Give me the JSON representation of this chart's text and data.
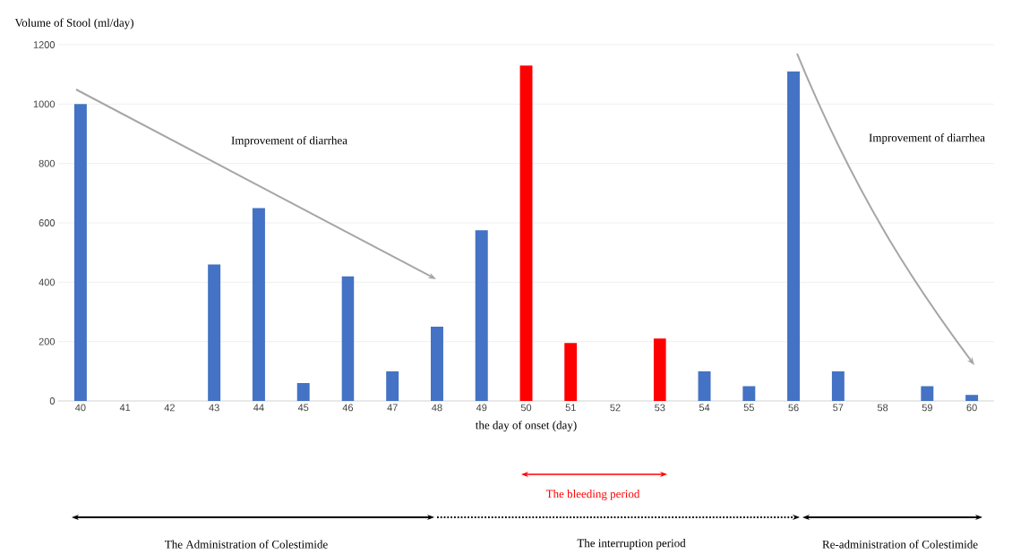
{
  "chart_data": {
    "type": "bar",
    "xlabel": "the day of onset (day)",
    "ylabel": "Volume of Stool (ml/day)",
    "categories": [
      "40",
      "41",
      "42",
      "43",
      "44",
      "45",
      "46",
      "47",
      "48",
      "49",
      "50",
      "51",
      "52",
      "53",
      "54",
      "55",
      "56",
      "57",
      "58",
      "59",
      "60"
    ],
    "values": [
      1000,
      0,
      0,
      460,
      650,
      60,
      420,
      100,
      250,
      575,
      1130,
      195,
      0,
      210,
      100,
      50,
      1110,
      100,
      0,
      50,
      20
    ],
    "colors": [
      "#4472c4",
      "#4472c4",
      "#4472c4",
      "#4472c4",
      "#4472c4",
      "#4472c4",
      "#4472c4",
      "#4472c4",
      "#4472c4",
      "#4472c4",
      "#ff0000",
      "#ff0000",
      "#ff0000",
      "#ff0000",
      "#4472c4",
      "#4472c4",
      "#4472c4",
      "#4472c4",
      "#4472c4",
      "#4472c4",
      "#4472c4"
    ],
    "ylim": [
      0,
      1200
    ],
    "yticks": [
      0,
      200,
      400,
      600,
      800,
      1000,
      1200
    ],
    "grid": "y",
    "annotations": [
      "Improvement of diarrhea",
      "Improvement of diarrhea",
      "The bleeding period",
      "The Administration of Colestimide",
      "The interruption period",
      "Re-administration of Colestimide"
    ]
  }
}
